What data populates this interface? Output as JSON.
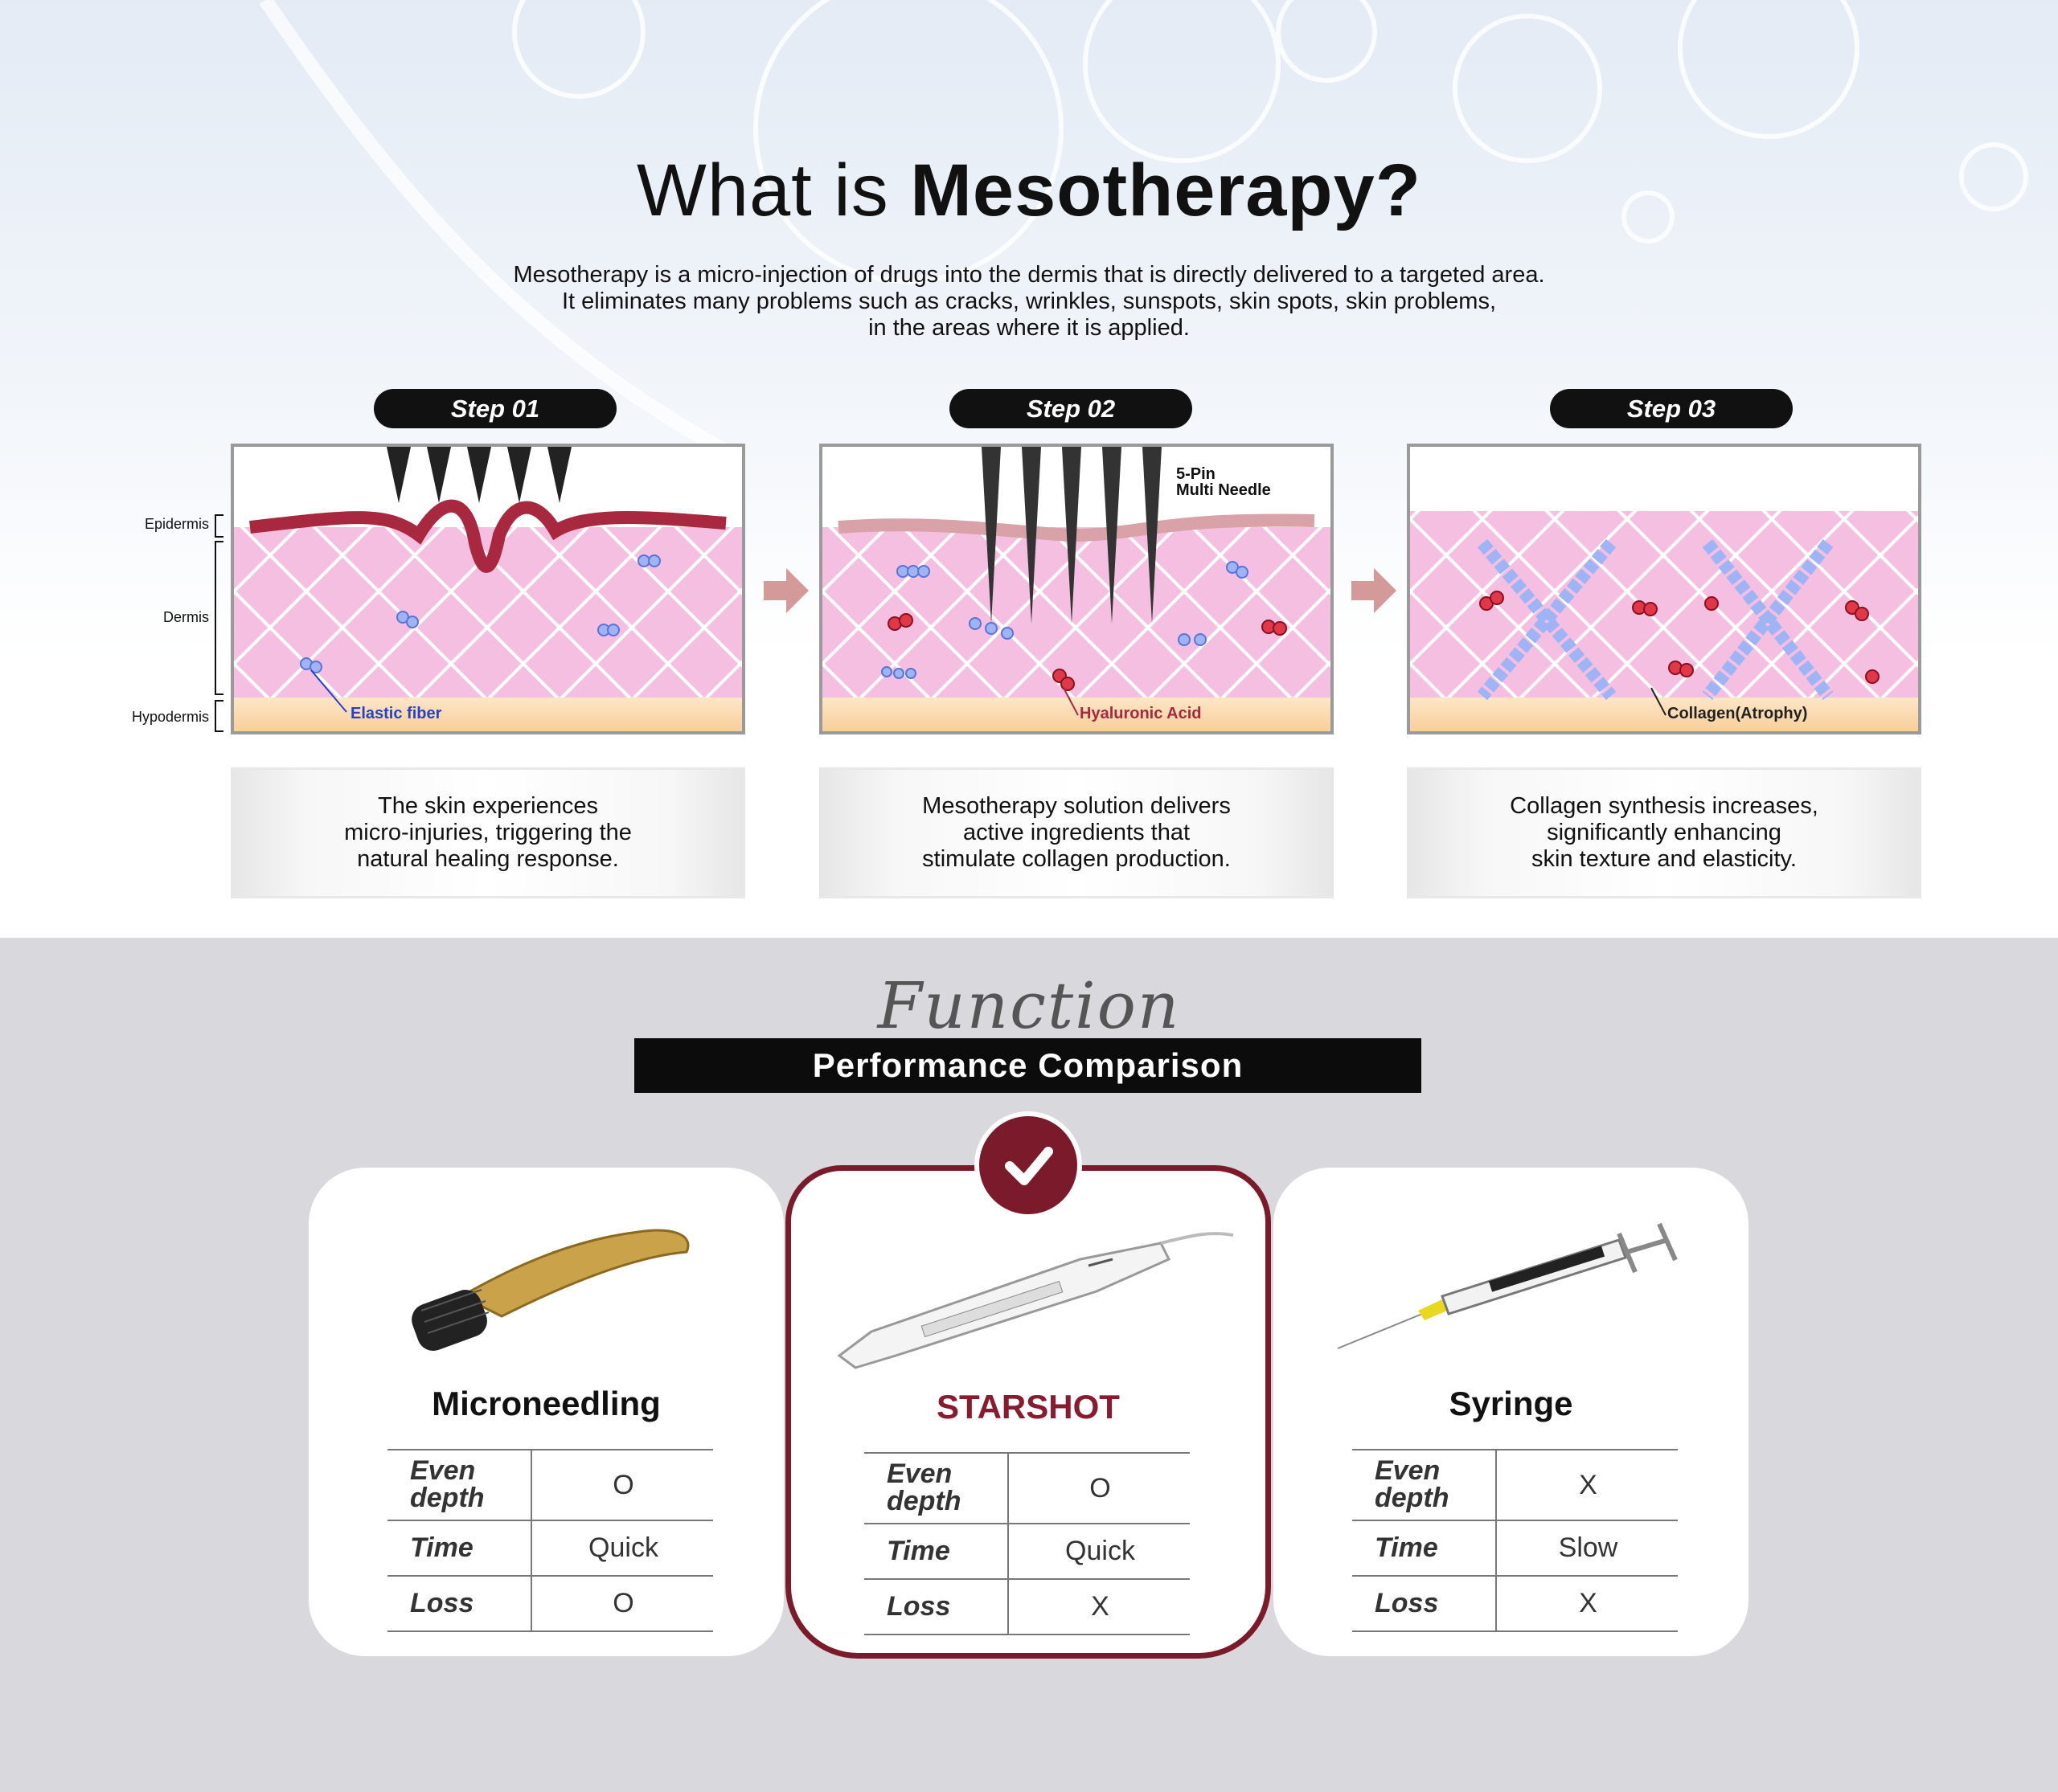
{
  "header": {
    "title_light": "What is",
    "title_bold": "Mesotherapy?",
    "description": [
      "Mesotherapy is a micro-injection of drugs into the dermis that is directly delivered to a targeted area.",
      "It eliminates many problems such as cracks, wrinkles, sunspots, skin spots, skin problems,",
      "in the areas where it is applied."
    ]
  },
  "layer_labels": [
    "Epidermis",
    "Dermis",
    "Hypodermis"
  ],
  "steps": [
    {
      "label": "Step 01",
      "annotation": "Elastic fiber",
      "caption": [
        "The skin experiences",
        "micro-injuries, triggering the",
        "natural healing response."
      ]
    },
    {
      "label": "Step 02",
      "needle_label": [
        "5-Pin",
        "Multi Needle"
      ],
      "annotation": "Hyaluronic Acid",
      "caption": [
        "Mesotherapy solution delivers",
        "active ingredients that",
        "stimulate collagen production."
      ]
    },
    {
      "label": "Step 03",
      "annotation": "Collagen(Atrophy)",
      "caption": [
        "Collagen synthesis increases,",
        "significantly enhancing",
        "skin texture and elasticity."
      ]
    }
  ],
  "comparison": {
    "script_title": "Function",
    "title": "Performance Comparison",
    "products": [
      {
        "name": "Microneedling",
        "rows": [
          {
            "label": "Even depth",
            "value": "O"
          },
          {
            "label": "Time",
            "value": "Quick"
          },
          {
            "label": "Loss",
            "value": "O"
          }
        ]
      },
      {
        "name": "STARSHOT",
        "rows": [
          {
            "label": "Even depth",
            "value": "O"
          },
          {
            "label": "Time",
            "value": "Quick"
          },
          {
            "label": "Loss",
            "value": "X"
          }
        ]
      },
      {
        "name": "Syringe",
        "rows": [
          {
            "label": "Even depth",
            "value": "X"
          },
          {
            "label": "Time",
            "value": "Slow"
          },
          {
            "label": "Loss",
            "value": "X"
          }
        ]
      }
    ]
  }
}
